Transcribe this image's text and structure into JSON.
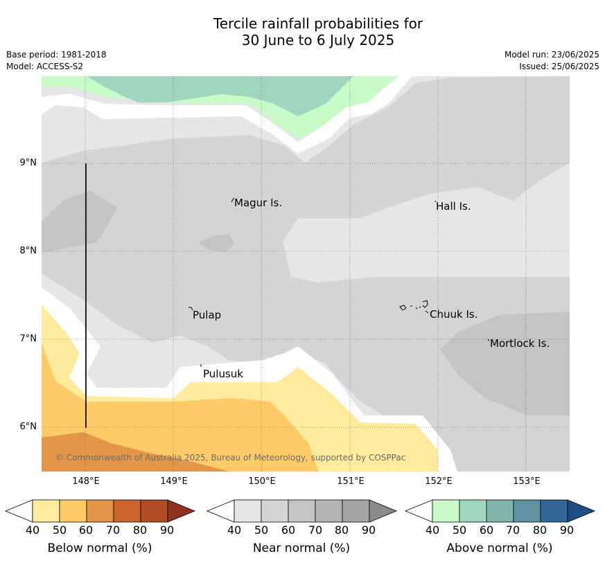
{
  "title": {
    "line1": "Tercile rainfall probabilities for",
    "line2": "30 June to 6 July 2025"
  },
  "meta": {
    "base_period": "Base period: 1981-2018",
    "model": "Model: ACCESS-S2",
    "model_run": "Model run: 23/06/2025",
    "issued": "Issued: 25/06/2025"
  },
  "axes": {
    "y_ticks": [
      "9°N",
      "8°N",
      "7°N",
      "6°N"
    ],
    "x_ticks": [
      "148°E",
      "149°E",
      "150°E",
      "151°E",
      "152°E",
      "153°E"
    ]
  },
  "places": {
    "magur": "Magur Is.",
    "hall": "Hall Is.",
    "pulap": "Pulap",
    "chuuk": "Chuuk Is.",
    "mortlock": "Mortlock Is.",
    "pulusuk": "Pulusuk"
  },
  "copyright": "© Commonwealth of Australia 2025, Bureau of Meteorology, supported by COSPPac",
  "legend": {
    "below": {
      "title": "Below normal (%)",
      "ticks": [
        "40",
        "50",
        "60",
        "70",
        "80",
        "90"
      ],
      "colors": [
        "#ffeb9e",
        "#fecb66",
        "#e49648",
        "#cd6430",
        "#b34c26",
        "#8e3420"
      ]
    },
    "near": {
      "title": "Near normal (%)",
      "ticks": [
        "40",
        "50",
        "60",
        "70",
        "80",
        "90"
      ],
      "colors": [
        "#e6e6e6",
        "#d4d4d4",
        "#c4c4c4",
        "#b4b4b4",
        "#a4a4a4",
        "#8a8a8a"
      ]
    },
    "above": {
      "title": "Above normal (%)",
      "ticks": [
        "40",
        "50",
        "60",
        "70",
        "80",
        "90"
      ],
      "colors": [
        "#c8fbc8",
        "#a0d6bd",
        "#80b5ad",
        "#5e92a0",
        "#336699",
        "#1d4f86"
      ]
    }
  }
}
